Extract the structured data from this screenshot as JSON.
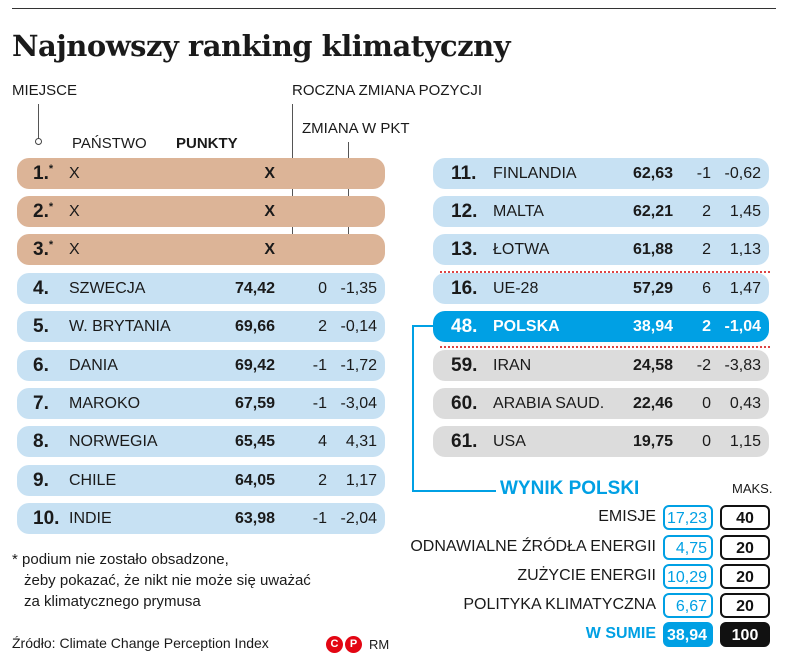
{
  "title": "Najnowszy ranking klimatyczny",
  "labels": {
    "miejsce": "MIEJSCE",
    "roczna": "ROCZNA ZMIANA POZYCJI",
    "zmiana_pkt": "ZMIANA W PKT",
    "panstwo": "PAŃSTWO",
    "punkty": "PUNKTY"
  },
  "chart_data": {
    "type": "table",
    "columns": [
      "MIEJSCE",
      "PAŃSTWO",
      "PUNKTY",
      "ROCZNA ZMIANA POZYCJI",
      "ZMIANA W PKT"
    ],
    "left_rows": [
      {
        "rank": "1.",
        "star": "*",
        "country": "X",
        "points": "X",
        "pos_change": "",
        "pts_change": ""
      },
      {
        "rank": "2.",
        "star": "*",
        "country": "X",
        "points": "X",
        "pos_change": "",
        "pts_change": ""
      },
      {
        "rank": "3.",
        "star": "*",
        "country": "X",
        "points": "X",
        "pos_change": "",
        "pts_change": ""
      },
      {
        "rank": "4.",
        "star": "",
        "country": "SZWECJA",
        "points": "74,42",
        "pos_change": "0",
        "pts_change": "-1,35"
      },
      {
        "rank": "5.",
        "star": "",
        "country": "W. BRYTANIA",
        "points": "69,66",
        "pos_change": "2",
        "pts_change": "-0,14"
      },
      {
        "rank": "6.",
        "star": "",
        "country": "DANIA",
        "points": "69,42",
        "pos_change": "-1",
        "pts_change": "-1,72"
      },
      {
        "rank": "7.",
        "star": "",
        "country": "MAROKO",
        "points": "67,59",
        "pos_change": "-1",
        "pts_change": "-3,04"
      },
      {
        "rank": "8.",
        "star": "",
        "country": "NORWEGIA",
        "points": "65,45",
        "pos_change": "4",
        "pts_change": "4,31"
      },
      {
        "rank": "9.",
        "star": "",
        "country": "CHILE",
        "points": "64,05",
        "pos_change": "2",
        "pts_change": "1,17"
      },
      {
        "rank": "10.",
        "star": "",
        "country": "INDIE",
        "points": "63,98",
        "pos_change": "-1",
        "pts_change": "-2,04"
      }
    ],
    "right_rows": [
      {
        "rank": "11.",
        "country": "FINLANDIA",
        "points": "62,63",
        "pos_change": "-1",
        "pts_change": "-0,62"
      },
      {
        "rank": "12.",
        "country": "MALTA",
        "points": "62,21",
        "pos_change": "2",
        "pts_change": "1,45"
      },
      {
        "rank": "13.",
        "country": "ŁOTWA",
        "points": "61,88",
        "pos_change": "2",
        "pts_change": "1,13"
      },
      {
        "rank": "16.",
        "country": "UE-28",
        "points": "57,29",
        "pos_change": "6",
        "pts_change": "1,47"
      },
      {
        "rank": "48.",
        "country": "POLSKA",
        "points": "38,94",
        "pos_change": "2",
        "pts_change": "-1,04"
      },
      {
        "rank": "59.",
        "country": "IRAN",
        "points": "24,58",
        "pos_change": "-2",
        "pts_change": "-3,83"
      },
      {
        "rank": "60.",
        "country": "ARABIA SAUD.",
        "points": "22,46",
        "pos_change": "0",
        "pts_change": "0,43"
      },
      {
        "rank": "61.",
        "country": "USA",
        "points": "19,75",
        "pos_change": "0",
        "pts_change": "1,15"
      }
    ],
    "wynik": {
      "title": "WYNIK POLSKI",
      "maks_label": "MAKS.",
      "items": [
        {
          "label": "EMISJE",
          "value": "17,23",
          "max": "40"
        },
        {
          "label": "ODNAWIALNE ŹRÓDŁA ENERGII",
          "value": "4,75",
          "max": "20"
        },
        {
          "label": "ZUŻYCIE ENERGII",
          "value": "10,29",
          "max": "20"
        },
        {
          "label": "POLITYKA KLIMATYCZNA",
          "value": "6,67",
          "max": "20"
        }
      ],
      "sum_label": "W SUMIE",
      "sum_value": "38,94",
      "sum_max": "100"
    }
  },
  "footnote": [
    "* podium nie zostało obsadzone,",
    "żeby pokazać, że nikt nie może się uważać",
    "za klimatycznego prymusa"
  ],
  "source": "Źródło: Climate Change Perception Index",
  "logo_letters": [
    "C",
    "P"
  ],
  "credit": "RM",
  "colors": {
    "podium": "#dcb497",
    "row_blue": "#c7e1f3",
    "row_grey": "#dcdcdc",
    "highlight": "#00a0e4"
  }
}
